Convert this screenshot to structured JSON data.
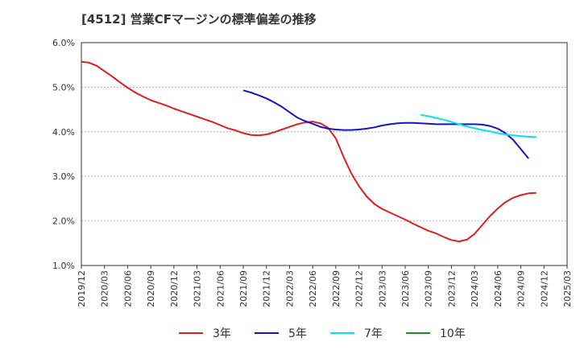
{
  "chart_data": {
    "type": "line",
    "title": "[4512]  営業CFマージンの標準偏差の推移",
    "xlabel": "",
    "ylabel": "",
    "x": [
      "2019/12",
      "2020/03",
      "2020/06",
      "2020/09",
      "2020/12",
      "2021/03",
      "2021/06",
      "2021/09",
      "2021/12",
      "2022/03",
      "2022/06",
      "2022/09",
      "2022/12",
      "2023/03",
      "2023/06",
      "2023/09",
      "2023/12",
      "2024/03",
      "2024/06",
      "2024/09",
      "2024/12",
      "2025/03"
    ],
    "y_ticks": [
      "1.0%",
      "2.0%",
      "3.0%",
      "4.0%",
      "5.0%",
      "6.0%"
    ],
    "ylim": [
      1.0,
      6.0
    ],
    "grid": true,
    "legend_position": "bottom",
    "series": [
      {
        "name": "3年",
        "color": "#dd1f1f",
        "points": [
          [
            "2019/12",
            5.57
          ],
          [
            "2020/01",
            5.55
          ],
          [
            "2020/02",
            5.48
          ],
          [
            "2020/03",
            5.36
          ],
          [
            "2020/04",
            5.24
          ],
          [
            "2020/05",
            5.11
          ],
          [
            "2020/06",
            4.99
          ],
          [
            "2020/07",
            4.88
          ],
          [
            "2020/08",
            4.79
          ],
          [
            "2020/09",
            4.71
          ],
          [
            "2020/10",
            4.65
          ],
          [
            "2020/11",
            4.59
          ],
          [
            "2020/12",
            4.52
          ],
          [
            "2021/01",
            4.46
          ],
          [
            "2021/02",
            4.4
          ],
          [
            "2021/03",
            4.34
          ],
          [
            "2021/04",
            4.28
          ],
          [
            "2021/05",
            4.22
          ],
          [
            "2021/06",
            4.15
          ],
          [
            "2021/07",
            4.08
          ],
          [
            "2021/08",
            4.03
          ],
          [
            "2021/09",
            3.97
          ],
          [
            "2021/10",
            3.93
          ],
          [
            "2021/11",
            3.92
          ],
          [
            "2021/12",
            3.94
          ],
          [
            "2022/01",
            3.99
          ],
          [
            "2022/02",
            4.05
          ],
          [
            "2022/03",
            4.11
          ],
          [
            "2022/04",
            4.17
          ],
          [
            "2022/05",
            4.21
          ],
          [
            "2022/06",
            4.23
          ],
          [
            "2022/07",
            4.19
          ],
          [
            "2022/08",
            4.09
          ],
          [
            "2022/09",
            3.85
          ],
          [
            "2022/10",
            3.44
          ],
          [
            "2022/11",
            3.07
          ],
          [
            "2022/12",
            2.78
          ],
          [
            "2023/01",
            2.55
          ],
          [
            "2023/02",
            2.38
          ],
          [
            "2023/03",
            2.27
          ],
          [
            "2023/04",
            2.19
          ],
          [
            "2023/05",
            2.11
          ],
          [
            "2023/06",
            2.03
          ],
          [
            "2023/07",
            1.94
          ],
          [
            "2023/08",
            1.86
          ],
          [
            "2023/09",
            1.78
          ],
          [
            "2023/10",
            1.72
          ],
          [
            "2023/11",
            1.64
          ],
          [
            "2023/12",
            1.57
          ],
          [
            "2024/01",
            1.54
          ],
          [
            "2024/02",
            1.58
          ],
          [
            "2024/03",
            1.71
          ],
          [
            "2024/04",
            1.91
          ],
          [
            "2024/05",
            2.11
          ],
          [
            "2024/06",
            2.28
          ],
          [
            "2024/07",
            2.42
          ],
          [
            "2024/08",
            2.52
          ],
          [
            "2024/09",
            2.58
          ],
          [
            "2024/10",
            2.62
          ],
          [
            "2024/11",
            2.63
          ]
        ]
      },
      {
        "name": "5年",
        "color": "#1414c8",
        "points": [
          [
            "2021/09",
            4.93
          ],
          [
            "2021/10",
            4.88
          ],
          [
            "2021/11",
            4.82
          ],
          [
            "2021/12",
            4.75
          ],
          [
            "2022/01",
            4.66
          ],
          [
            "2022/02",
            4.56
          ],
          [
            "2022/03",
            4.44
          ],
          [
            "2022/04",
            4.32
          ],
          [
            "2022/05",
            4.24
          ],
          [
            "2022/06",
            4.18
          ],
          [
            "2022/07",
            4.11
          ],
          [
            "2022/08",
            4.07
          ],
          [
            "2022/09",
            4.05
          ],
          [
            "2022/10",
            4.04
          ],
          [
            "2022/11",
            4.04
          ],
          [
            "2022/12",
            4.05
          ],
          [
            "2023/01",
            4.07
          ],
          [
            "2023/02",
            4.1
          ],
          [
            "2023/03",
            4.14
          ],
          [
            "2023/04",
            4.17
          ],
          [
            "2023/05",
            4.19
          ],
          [
            "2023/06",
            4.2
          ],
          [
            "2023/07",
            4.2
          ],
          [
            "2023/08",
            4.19
          ],
          [
            "2023/09",
            4.18
          ],
          [
            "2023/10",
            4.17
          ],
          [
            "2023/11",
            4.17
          ],
          [
            "2023/12",
            4.17
          ],
          [
            "2024/01",
            4.17
          ],
          [
            "2024/02",
            4.17
          ],
          [
            "2024/03",
            4.17
          ],
          [
            "2024/04",
            4.16
          ],
          [
            "2024/05",
            4.13
          ],
          [
            "2024/06",
            4.07
          ],
          [
            "2024/07",
            3.97
          ],
          [
            "2024/08",
            3.82
          ],
          [
            "2024/09",
            3.61
          ],
          [
            "2024/10",
            3.4
          ]
        ]
      },
      {
        "name": "7年",
        "color": "#00e5ee",
        "points": [
          [
            "2023/08",
            4.38
          ],
          [
            "2023/09",
            4.35
          ],
          [
            "2023/10",
            4.31
          ],
          [
            "2023/11",
            4.27
          ],
          [
            "2023/12",
            4.22
          ],
          [
            "2024/01",
            4.17
          ],
          [
            "2024/02",
            4.12
          ],
          [
            "2024/03",
            4.08
          ],
          [
            "2024/04",
            4.04
          ],
          [
            "2024/05",
            4.01
          ],
          [
            "2024/06",
            3.97
          ],
          [
            "2024/07",
            3.94
          ],
          [
            "2024/08",
            3.92
          ],
          [
            "2024/09",
            3.9
          ],
          [
            "2024/10",
            3.89
          ],
          [
            "2024/11",
            3.88
          ]
        ]
      },
      {
        "name": "10年",
        "color": "#228b22",
        "points": []
      }
    ]
  }
}
